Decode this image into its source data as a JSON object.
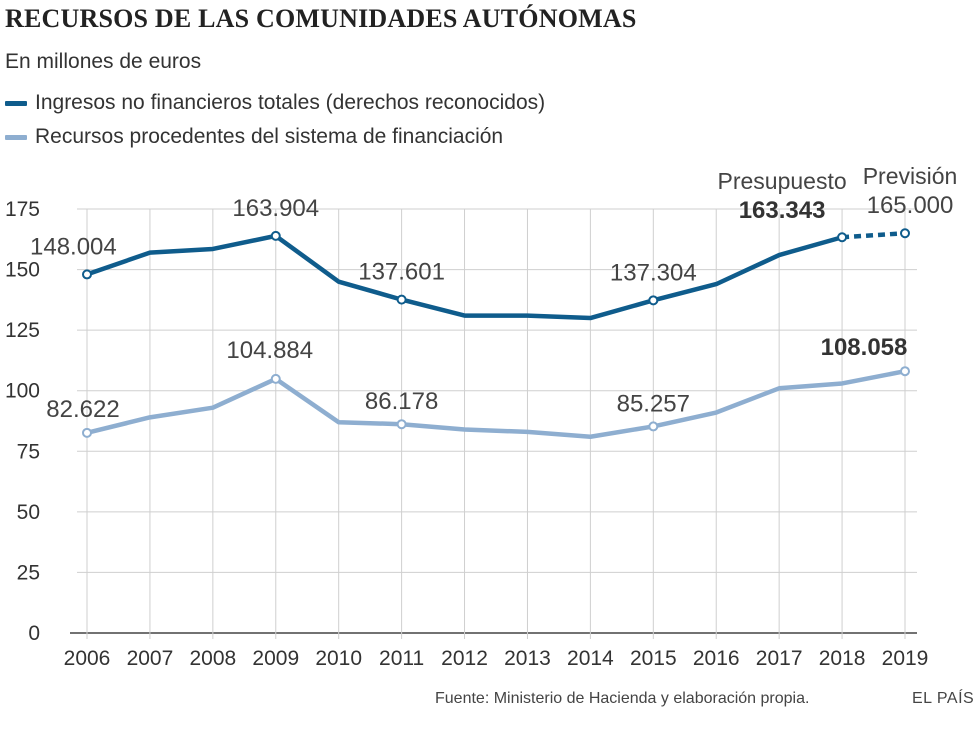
{
  "chart_data": {
    "type": "line",
    "title": "RECURSOS DE LAS COMUNIDADES AUTÓNOMAS",
    "subtitle": "En millones de euros",
    "x": [
      "2006",
      "2007",
      "2008",
      "2009",
      "2010",
      "2011",
      "2012",
      "2013",
      "2014",
      "2015",
      "2016",
      "2017",
      "2018",
      "2019"
    ],
    "ylim": [
      0,
      175
    ],
    "yticks": [
      0,
      25,
      50,
      75,
      100,
      125,
      150,
      175
    ],
    "grid": true,
    "series": [
      {
        "name": "Ingresos no financieros totales (derechos reconocidos)",
        "color": "#0f5c8c",
        "values": [
          148.004,
          157,
          158.5,
          163.904,
          145,
          137.601,
          131,
          131,
          130,
          137.304,
          144,
          156,
          163.343,
          165.0
        ],
        "dashed_from_index": 12
      },
      {
        "name": "Recursos procedentes del sistema de financiación",
        "color": "#8eaed0",
        "values": [
          82.622,
          89,
          93,
          104.884,
          87,
          86.178,
          84,
          83,
          81,
          85.257,
          91,
          101,
          103,
          108.058
        ]
      }
    ],
    "annotations": [
      {
        "series": 0,
        "index": 0,
        "text": "148.004",
        "bold": false
      },
      {
        "series": 0,
        "index": 3,
        "text": "163.904",
        "bold": false
      },
      {
        "series": 0,
        "index": 5,
        "text": "137.601",
        "bold": false
      },
      {
        "series": 0,
        "index": 9,
        "text": "137.304",
        "bold": false
      },
      {
        "series": 0,
        "index": 12,
        "text": "163.343",
        "bold": true,
        "label": "Presupuesto"
      },
      {
        "series": 0,
        "index": 13,
        "text": "165.000",
        "bold": false,
        "label": "Previsión"
      },
      {
        "series": 1,
        "index": 0,
        "text": "82.622",
        "bold": false
      },
      {
        "series": 1,
        "index": 3,
        "text": "104.884",
        "bold": false
      },
      {
        "series": 1,
        "index": 5,
        "text": "86.178",
        "bold": false
      },
      {
        "series": 1,
        "index": 9,
        "text": "85.257",
        "bold": false
      },
      {
        "series": 1,
        "index": 13,
        "text": "108.058",
        "bold": true
      }
    ]
  },
  "footer": {
    "source": "Fuente: Ministerio de Hacienda y elaboración propia.",
    "brand": "EL PAÍS"
  }
}
